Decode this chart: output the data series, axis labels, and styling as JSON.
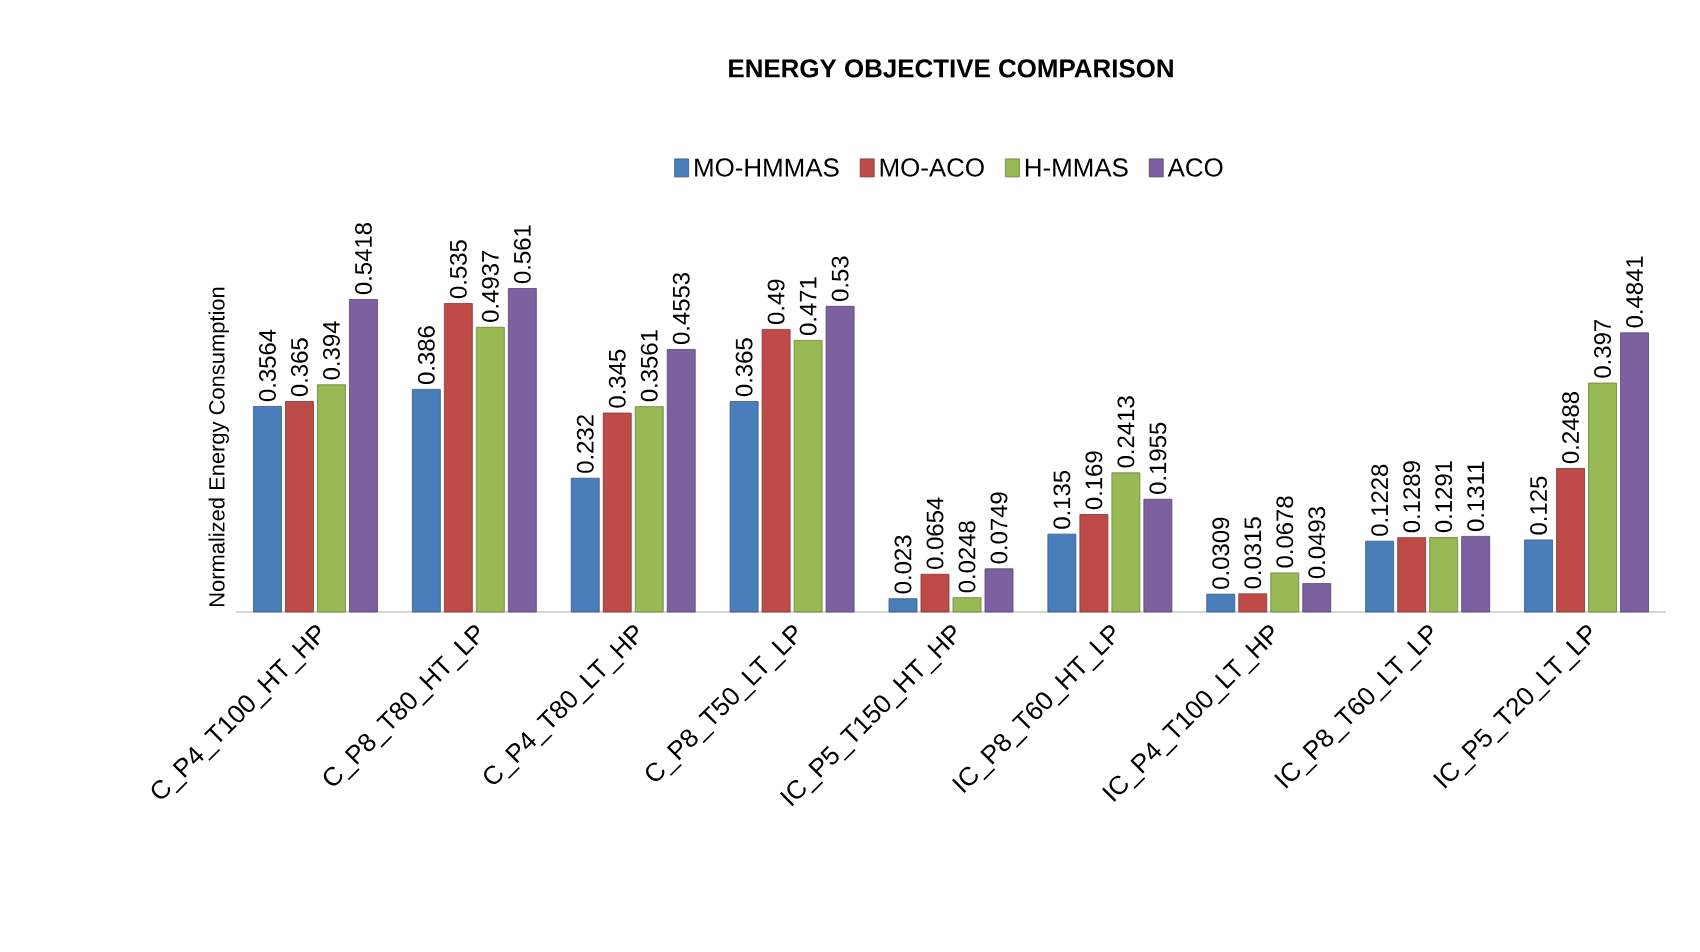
{
  "chart_data": {
    "type": "bar",
    "title": "ENERGY OBJECTIVE COMPARISON",
    "ylabel": "Normalized  Energy Consumption",
    "categories": [
      "C_P4_T100_HT_HP",
      "C_P8_T80_HT_LP",
      "C_P4_T80_LT_HP",
      "C_P8_T50_LT_LP",
      "IC_P5_T150_HT_HP",
      "IC_P8_T60_HT_LP",
      "IC_P4_T100_LT_HP",
      "IC_P8_T60_LT_LP",
      "IC_P5_T20_LT_LP"
    ],
    "series": [
      {
        "name": "MO-HMMAS",
        "color": "#4a7ebb",
        "values": [
          0.3564,
          0.386,
          0.232,
          0.365,
          0.023,
          0.135,
          0.0309,
          0.1228,
          0.125
        ]
      },
      {
        "name": "MO-ACO",
        "color": "#be4b48",
        "values": [
          0.365,
          0.535,
          0.345,
          0.49,
          0.0654,
          0.169,
          0.0315,
          0.1289,
          0.2488
        ]
      },
      {
        "name": "H-MMAS",
        "color": "#98b954",
        "values": [
          0.394,
          0.4937,
          0.3561,
          0.471,
          0.0248,
          0.2413,
          0.0678,
          0.1291,
          0.397
        ]
      },
      {
        "name": "ACO",
        "color": "#7d60a0",
        "values": [
          0.5418,
          0.561,
          0.4553,
          0.53,
          0.0749,
          0.1955,
          0.0493,
          0.1311,
          0.4841
        ]
      }
    ],
    "data_labels": true,
    "legend": "top",
    "tick_labels": "x"
  }
}
